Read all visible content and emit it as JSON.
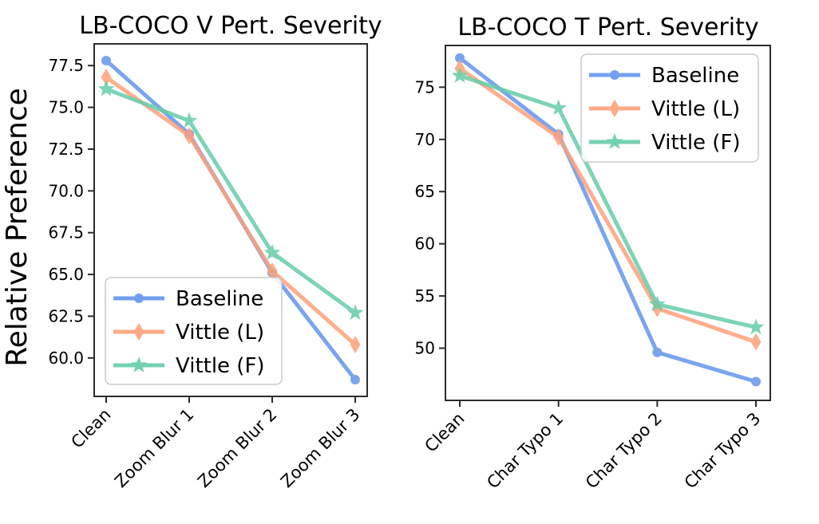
{
  "figure": {
    "background": "#ffffff",
    "text_color": "#000000",
    "spine_color": "#2b2b2b",
    "legend_border_color": "#cccccc"
  },
  "chart_data": [
    {
      "type": "line",
      "title": "LB-COCO V Pert. Severity",
      "ylabel": "Relative Preference",
      "xlabel": "",
      "grid": false,
      "legend_position": "lower left inside",
      "categories": [
        "Clean",
        "Zoom Blur 1",
        "Zoom Blur 2",
        "Zoom Blur 3"
      ],
      "ylim": [
        57.7,
        78.8
      ],
      "yticks": [
        {
          "value": 60.0,
          "label": "60.0"
        },
        {
          "value": 62.5,
          "label": "62.5"
        },
        {
          "value": 65.0,
          "label": "65.0"
        },
        {
          "value": 67.5,
          "label": "67.5"
        },
        {
          "value": 70.0,
          "label": "70.0"
        },
        {
          "value": 72.5,
          "label": "72.5"
        },
        {
          "value": 75.0,
          "label": "75.0"
        },
        {
          "value": 77.5,
          "label": "77.5"
        }
      ],
      "series": [
        {
          "name": "Baseline",
          "marker": "circle",
          "color": "#6495ED",
          "values": [
            77.8,
            73.4,
            65.1,
            58.7
          ]
        },
        {
          "name": "Vittle (L)",
          "marker": "diamond",
          "color": "#FFA07A",
          "values": [
            76.8,
            73.3,
            65.2,
            60.8
          ]
        },
        {
          "name": "Vittle (F)",
          "marker": "star",
          "color": "#66CDAA",
          "values": [
            76.1,
            74.2,
            66.3,
            62.7
          ]
        }
      ]
    },
    {
      "type": "line",
      "title": "LB-COCO T Pert. Severity",
      "ylabel": "",
      "xlabel": "",
      "grid": false,
      "legend_position": "upper right inside",
      "categories": [
        "Clean",
        "Char Typo 1",
        "Char Typo 2",
        "Char Typo 3"
      ],
      "ylim": [
        45.0,
        79.0
      ],
      "yticks": [
        {
          "value": 50,
          "label": "50"
        },
        {
          "value": 55,
          "label": "55"
        },
        {
          "value": 60,
          "label": "60"
        },
        {
          "value": 65,
          "label": "65"
        },
        {
          "value": 70,
          "label": "70"
        },
        {
          "value": 75,
          "label": "75"
        }
      ],
      "series": [
        {
          "name": "Baseline",
          "marker": "circle",
          "color": "#6495ED",
          "values": [
            77.8,
            70.5,
            49.6,
            46.8
          ]
        },
        {
          "name": "Vittle (L)",
          "marker": "diamond",
          "color": "#FFA07A",
          "values": [
            76.8,
            70.2,
            53.8,
            50.6
          ]
        },
        {
          "name": "Vittle (F)",
          "marker": "star",
          "color": "#66CDAA",
          "values": [
            76.1,
            73.0,
            54.2,
            52.0
          ]
        }
      ]
    }
  ]
}
